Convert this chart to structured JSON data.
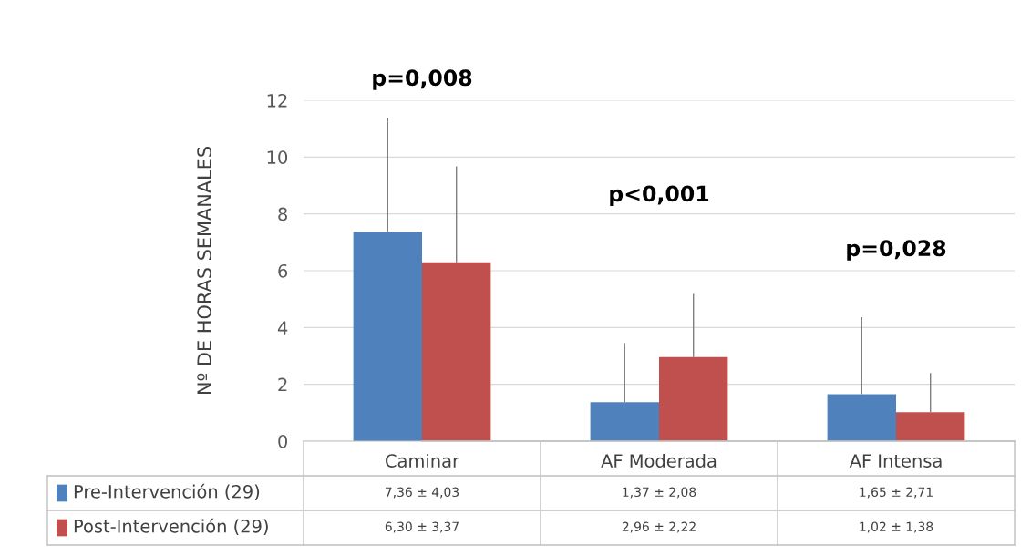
{
  "chart_data": {
    "type": "bar",
    "ylabel": "Nº DE HORAS SEMANALES",
    "categories": [
      "Caminar",
      "AF Moderada",
      "AF Intensa"
    ],
    "series": [
      {
        "name": "Pre-Intervención (29)",
        "color": "#4f81bd",
        "values": [
          7.36,
          1.37,
          1.65
        ],
        "errors": [
          [
            7.36,
            11.39
          ],
          [
            1.37,
            3.45
          ],
          [
            1.65,
            4.36
          ]
        ],
        "value_labels": [
          "7,36 ± 4,03",
          "1,37 ± 2,08",
          "1,65 ± 2,71"
        ]
      },
      {
        "name": "Post-Intervención (29)",
        "color": "#c0504d",
        "values": [
          6.3,
          2.96,
          1.02
        ],
        "errors": [
          [
            6.3,
            9.67
          ],
          [
            2.96,
            5.18
          ],
          [
            1.02,
            2.4
          ]
        ],
        "value_labels": [
          "6,30 ± 3,37",
          "2,96 ± 2,22",
          "1,02 ± 1,38"
        ]
      }
    ],
    "annotations": [
      "p=0,008",
      "p<0,001",
      "p=0,028"
    ],
    "ylim": [
      0,
      12
    ],
    "yticks": [
      0,
      2,
      4,
      6,
      8,
      10,
      12
    ],
    "grid": "y",
    "legend": "bottom"
  }
}
